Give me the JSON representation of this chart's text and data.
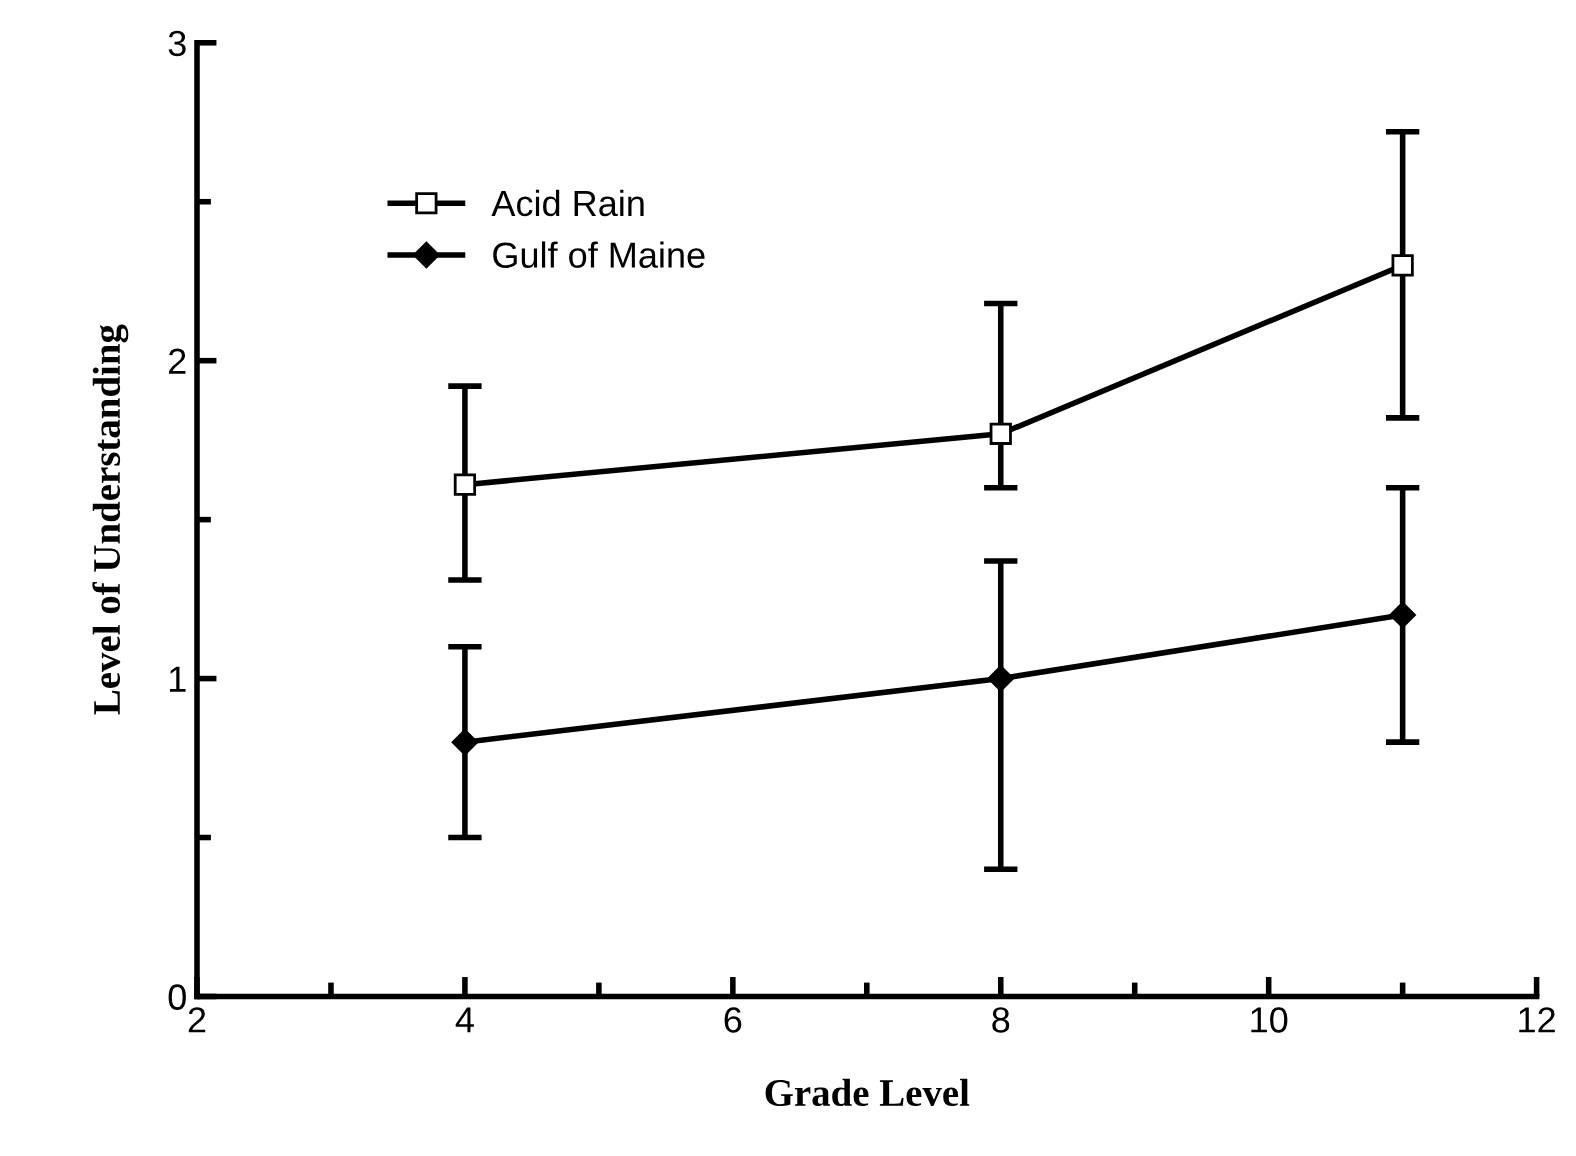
{
  "chart_data": {
    "type": "line",
    "xlabel": "Grade Level",
    "ylabel": "Level of Understanding",
    "x": [
      4,
      8,
      11
    ],
    "series": [
      {
        "name": "Acid Rain",
        "color": "#000000",
        "marker": "square",
        "values": [
          1.61,
          1.77,
          2.3
        ],
        "errors": [
          [
            1.31,
            1.92
          ],
          [
            1.6,
            2.18
          ],
          [
            1.82,
            2.72
          ]
        ]
      },
      {
        "name": "Gulf of Maine",
        "color": "#000000",
        "marker": "diamond",
        "values": [
          0.8,
          1.0,
          1.2
        ],
        "errors": [
          [
            0.5,
            1.1
          ],
          [
            0.4,
            1.37
          ],
          [
            0.8,
            1.6
          ]
        ]
      }
    ],
    "xlim": [
      2,
      12
    ],
    "xticks": [
      2,
      4,
      6,
      8,
      10,
      12
    ],
    "ylim": [
      0,
      3
    ],
    "yticks": [
      0,
      1,
      2,
      3
    ],
    "grid": false,
    "legend": "top left",
    "line_style": "solid"
  }
}
